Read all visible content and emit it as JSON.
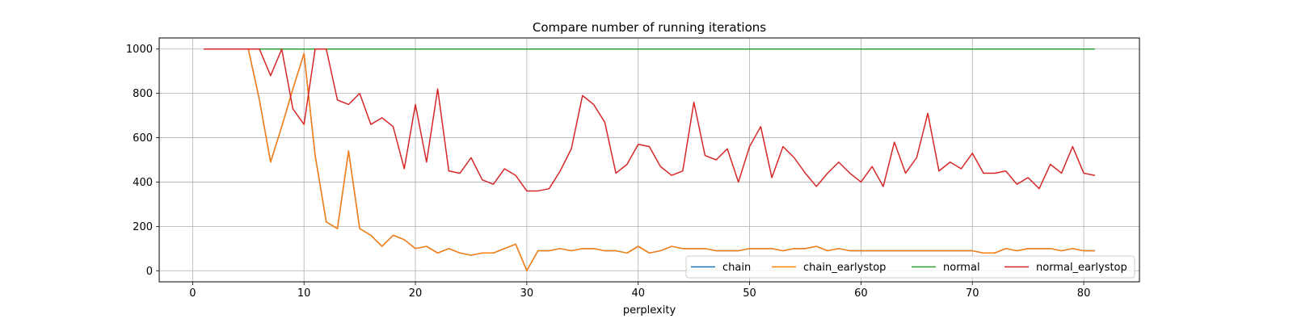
{
  "chart_data": {
    "type": "line",
    "title": "Compare number of running iterations",
    "xlabel": "perplexity",
    "ylabel": "",
    "xlim": [
      -3,
      85
    ],
    "ylim": [
      -50,
      1050
    ],
    "xticks": [
      0,
      10,
      20,
      30,
      40,
      50,
      60,
      70,
      80
    ],
    "yticks": [
      0,
      200,
      400,
      600,
      800,
      1000
    ],
    "grid": true,
    "legend_position": "lower right",
    "x": [
      1,
      2,
      3,
      4,
      5,
      6,
      7,
      8,
      9,
      10,
      11,
      12,
      13,
      14,
      15,
      16,
      17,
      18,
      19,
      20,
      21,
      22,
      23,
      24,
      25,
      26,
      27,
      28,
      29,
      30,
      31,
      32,
      33,
      34,
      35,
      36,
      37,
      38,
      39,
      40,
      41,
      42,
      43,
      44,
      45,
      46,
      47,
      48,
      49,
      50,
      51,
      52,
      53,
      54,
      55,
      56,
      57,
      58,
      59,
      60,
      61,
      62,
      63,
      64,
      65,
      66,
      67,
      68,
      69,
      70,
      71,
      72,
      73,
      74,
      75,
      76,
      77,
      78,
      79,
      80,
      81
    ],
    "series": [
      {
        "name": "chain",
        "color": "#1f77b4",
        "values": [
          1000,
          1000,
          1000,
          1000,
          1000,
          770,
          490,
          650,
          820,
          980,
          520,
          220,
          190,
          540,
          190,
          160,
          110,
          160,
          140,
          100,
          110,
          80,
          100,
          80,
          70,
          80,
          80,
          100,
          120,
          0,
          90,
          90,
          100,
          90,
          100,
          100,
          90,
          90,
          80,
          110,
          80,
          90,
          110,
          100,
          100,
          100,
          90,
          90,
          90,
          100,
          100,
          100,
          90,
          100,
          100,
          110,
          90,
          100,
          90,
          90,
          90,
          90,
          90,
          90,
          90,
          90,
          90,
          90,
          90,
          90,
          80,
          80,
          100,
          90,
          100,
          100,
          100,
          90,
          100,
          90,
          90
        ]
      },
      {
        "name": "chain_earlystop",
        "color": "#ff7f0e",
        "values": [
          1000,
          1000,
          1000,
          1000,
          1000,
          770,
          490,
          650,
          820,
          980,
          520,
          220,
          190,
          540,
          190,
          160,
          110,
          160,
          140,
          100,
          110,
          80,
          100,
          80,
          70,
          80,
          80,
          100,
          120,
          0,
          90,
          90,
          100,
          90,
          100,
          100,
          90,
          90,
          80,
          110,
          80,
          90,
          110,
          100,
          100,
          100,
          90,
          90,
          90,
          100,
          100,
          100,
          90,
          100,
          100,
          110,
          90,
          100,
          90,
          90,
          90,
          90,
          90,
          90,
          90,
          90,
          90,
          90,
          90,
          90,
          80,
          80,
          100,
          90,
          100,
          100,
          100,
          90,
          100,
          90,
          90
        ]
      },
      {
        "name": "normal",
        "color": "#2ca02c",
        "values": [
          1000,
          1000,
          1000,
          1000,
          1000,
          1000,
          1000,
          1000,
          1000,
          1000,
          1000,
          1000,
          1000,
          1000,
          1000,
          1000,
          1000,
          1000,
          1000,
          1000,
          1000,
          1000,
          1000,
          1000,
          1000,
          1000,
          1000,
          1000,
          1000,
          1000,
          1000,
          1000,
          1000,
          1000,
          1000,
          1000,
          1000,
          1000,
          1000,
          1000,
          1000,
          1000,
          1000,
          1000,
          1000,
          1000,
          1000,
          1000,
          1000,
          1000,
          1000,
          1000,
          1000,
          1000,
          1000,
          1000,
          1000,
          1000,
          1000,
          1000,
          1000,
          1000,
          1000,
          1000,
          1000,
          1000,
          1000,
          1000,
          1000,
          1000,
          1000,
          1000,
          1000,
          1000,
          1000,
          1000,
          1000,
          1000,
          1000,
          1000,
          1000
        ]
      },
      {
        "name": "normal_earlystop",
        "color": "#d62728",
        "values": [
          1000,
          1000,
          1000,
          1000,
          1000,
          1000,
          880,
          1000,
          730,
          660,
          1000,
          1000,
          770,
          750,
          800,
          660,
          690,
          650,
          460,
          750,
          490,
          820,
          450,
          440,
          510,
          410,
          390,
          460,
          430,
          360,
          360,
          370,
          450,
          550,
          790,
          750,
          670,
          440,
          480,
          570,
          560,
          470,
          430,
          450,
          760,
          520,
          500,
          550,
          400,
          560,
          650,
          420,
          560,
          510,
          440,
          380,
          440,
          490,
          440,
          400,
          470,
          380,
          580,
          440,
          510,
          710,
          450,
          490,
          460,
          530,
          440,
          440,
          450,
          390,
          420,
          370,
          480,
          440,
          560,
          440,
          430
        ]
      }
    ]
  }
}
